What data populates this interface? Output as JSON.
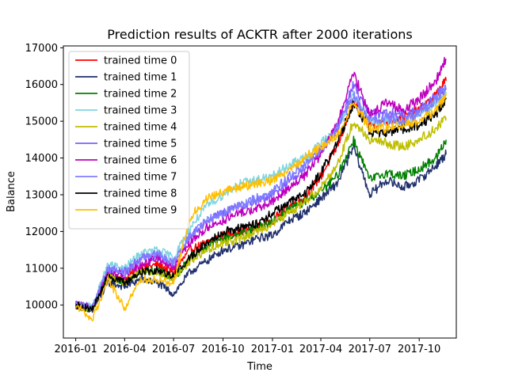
{
  "chart_data": {
    "type": "line",
    "title": "Prediction results of ACKTR after 2000 iterations",
    "xlabel": "Time",
    "ylabel": "Balance",
    "xlim": [
      "2015-12-09",
      "2017-12-09"
    ],
    "ylim": [
      9100,
      17050
    ],
    "x_ticks": [
      "2016-01",
      "2016-04",
      "2016-07",
      "2016-10",
      "2017-01",
      "2017-04",
      "2017-07",
      "2017-10"
    ],
    "y_ticks": [
      10000,
      11000,
      12000,
      13000,
      14000,
      15000,
      16000,
      17000
    ],
    "grid": false,
    "legend_position": "upper-left",
    "x": [
      "2016-01-01",
      "2016-02-01",
      "2016-03-01",
      "2016-04-01",
      "2016-05-01",
      "2016-06-01",
      "2016-07-01",
      "2016-08-01",
      "2016-09-01",
      "2016-10-01",
      "2016-11-01",
      "2016-12-01",
      "2017-01-01",
      "2017-02-01",
      "2017-03-01",
      "2017-04-01",
      "2017-05-01",
      "2017-06-01",
      "2017-07-01",
      "2017-08-01",
      "2017-09-01",
      "2017-10-01",
      "2017-11-01",
      "2017-11-20"
    ],
    "series": [
      {
        "name": "trained time 0",
        "color": "#ff0000",
        "values": [
          10000,
          9900,
          10900,
          10700,
          11000,
          11100,
          10900,
          11500,
          11700,
          11900,
          12000,
          12100,
          12300,
          12700,
          12900,
          13500,
          14300,
          15500,
          14900,
          15000,
          15100,
          15300,
          15700,
          16100
        ]
      },
      {
        "name": "trained time 1",
        "color": "#1f2f6b",
        "values": [
          10000,
          9850,
          10600,
          10500,
          10700,
          10600,
          10300,
          10900,
          11200,
          11500,
          11600,
          11800,
          11900,
          12300,
          12500,
          12900,
          13300,
          14300,
          13000,
          13400,
          13200,
          13400,
          13800,
          14100
        ]
      },
      {
        "name": "trained time 2",
        "color": "#008000",
        "values": [
          10000,
          9880,
          10800,
          10650,
          10900,
          10950,
          10700,
          11300,
          11600,
          11800,
          11950,
          12100,
          12250,
          12600,
          12800,
          13100,
          13500,
          14500,
          13400,
          13600,
          13500,
          13700,
          14000,
          14500
        ]
      },
      {
        "name": "trained time 3",
        "color": "#7fd4e0",
        "values": [
          10000,
          9950,
          11100,
          11000,
          11400,
          11500,
          11300,
          12100,
          12700,
          13000,
          13300,
          13400,
          13500,
          13800,
          14000,
          14400,
          14700,
          15700,
          15000,
          15000,
          15000,
          15200,
          15500,
          15800
        ]
      },
      {
        "name": "trained time 4",
        "color": "#bfbf00",
        "values": [
          10000,
          9900,
          10800,
          10600,
          10900,
          10900,
          10700,
          11200,
          11500,
          11700,
          11800,
          12000,
          12200,
          12500,
          12800,
          13200,
          13800,
          15000,
          14500,
          14400,
          14300,
          14500,
          14800,
          15100
        ]
      },
      {
        "name": "trained time 5",
        "color": "#7f5fff",
        "values": [
          10000,
          9950,
          11000,
          10900,
          11300,
          11300,
          11100,
          11900,
          12300,
          12500,
          12700,
          12800,
          13000,
          13400,
          13700,
          14200,
          14800,
          16000,
          15200,
          15200,
          15200,
          15300,
          15700,
          15900
        ]
      },
      {
        "name": "trained time 6",
        "color": "#bf00bf",
        "values": [
          10000,
          9920,
          10900,
          10800,
          11100,
          11300,
          11000,
          11700,
          12100,
          12300,
          12500,
          12600,
          12800,
          13200,
          13500,
          14100,
          14900,
          16300,
          15200,
          15500,
          15300,
          15600,
          16100,
          16700
        ]
      },
      {
        "name": "trained time 7",
        "color": "#7f7fff",
        "values": [
          10000,
          9940,
          11000,
          10850,
          11250,
          11400,
          11150,
          11900,
          12300,
          12500,
          12700,
          12900,
          13100,
          13500,
          13800,
          14200,
          14800,
          15700,
          15000,
          15100,
          15000,
          15200,
          15600,
          15900
        ]
      },
      {
        "name": "trained time 8",
        "color": "#000000",
        "values": [
          10000,
          9870,
          10800,
          10600,
          10900,
          10950,
          10800,
          11300,
          11700,
          12000,
          12100,
          12200,
          12500,
          12800,
          13000,
          13600,
          14400,
          15500,
          14700,
          14700,
          14800,
          14900,
          15200,
          15600
        ]
      },
      {
        "name": "trained time 9",
        "color": "#ffbf00",
        "values": [
          10000,
          9600,
          10700,
          9900,
          10700,
          10700,
          10600,
          12400,
          12900,
          13100,
          13200,
          13300,
          13400,
          13700,
          14000,
          14300,
          14600,
          15500,
          14800,
          14800,
          14900,
          15000,
          15300,
          15700
        ]
      }
    ]
  }
}
